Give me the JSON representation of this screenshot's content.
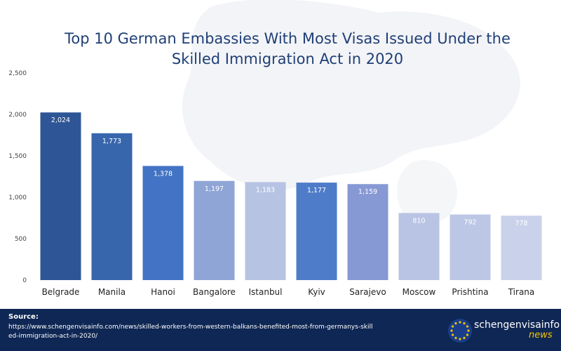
{
  "title_lines": [
    "Top 10 German Embassies With Most Visas Issued Under the",
    "Skilled Immigration Act in 2020"
  ],
  "source": {
    "label": "Source:",
    "url": "https://www.schengenvisainfo.com/news/skilled-workers-from-western-balkans-benefited-most-from-germanys-skilled-immigration-act-in-2020/"
  },
  "logo": {
    "name": "schengenvisainfo",
    "sub": "news",
    "icon": "eu-stars-icon"
  },
  "colors": {
    "title": "#1f3f76",
    "footer": "#0f2754",
    "logo_sub": "#f2c500"
  },
  "chart_data": {
    "type": "bar",
    "categories": [
      "Belgrade",
      "Manila",
      "Hanoi",
      "Bangalore",
      "Istanbul",
      "Kyiv",
      "Sarajevo",
      "Moscow",
      "Prishtina",
      "Tirana"
    ],
    "values": [
      2024,
      1773,
      1378,
      1197,
      1183,
      1177,
      1159,
      810,
      792,
      778
    ],
    "value_labels": [
      "2,024",
      "1,773",
      "1,378",
      "1,197",
      "1,183",
      "1,177",
      "1,159",
      "810",
      "792",
      "778"
    ],
    "bar_colors": [
      "#2e5596",
      "#3866ad",
      "#4373c4",
      "#8fa5d6",
      "#b6c3e3",
      "#4f7cc9",
      "#8799d4",
      "#b9c4e4",
      "#bcc7e5",
      "#c9d2ea"
    ],
    "ylim": [
      0,
      2500
    ],
    "yticks": [
      0,
      500,
      1000,
      1500,
      2000,
      2500
    ],
    "ytick_labels": [
      "0",
      "500",
      "1,000",
      "1,500",
      "2,000",
      "2,500"
    ],
    "grid": false,
    "legend": false
  }
}
